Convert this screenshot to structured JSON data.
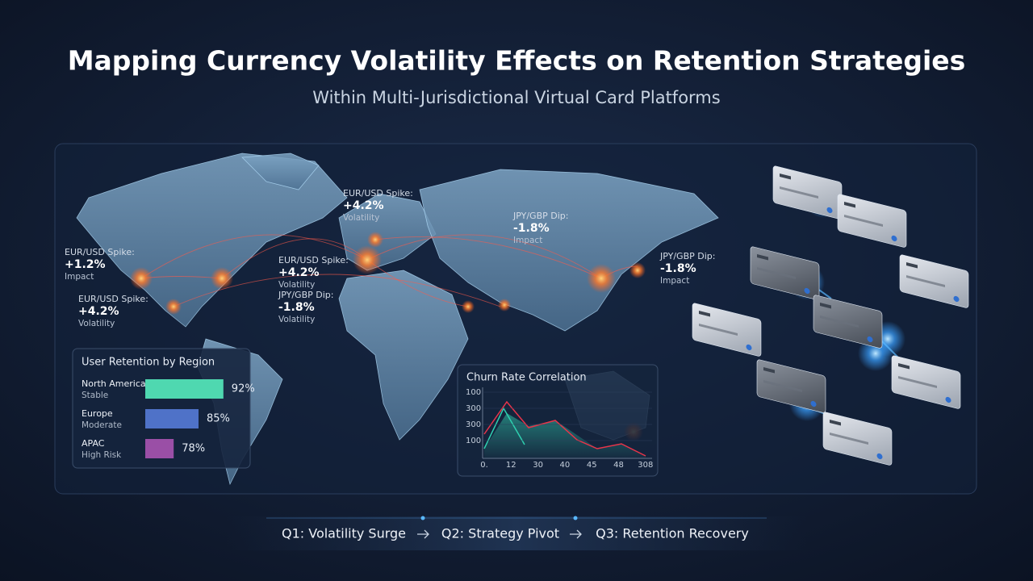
{
  "header": {
    "title": "Mapping Currency Volatility Effects on Retention Strategies",
    "subtitle": "Within Multi-Jurisdictional Virtual Card Platforms"
  },
  "map_annotations": [
    {
      "title": "EUR/USD Spike:",
      "value": "+4.2%",
      "note": "Volatility"
    },
    {
      "title": "JPY/GBP Dip:",
      "value": "-1.8%",
      "note": "Impact"
    },
    {
      "title": "EUR/USD Spike:",
      "value": "+1.2%",
      "note": "Impact"
    },
    {
      "title": "EUR/USD Spike:",
      "value": "+4.2%",
      "note": "Volatility"
    },
    {
      "title": "JPY/GBP Dip:",
      "value": "-1.8%",
      "note": "Impact"
    },
    {
      "title": "JPY/GBP Dip:",
      "value": "-1.8%",
      "note": "Volatility"
    },
    {
      "title": "EUR/USD Spike:",
      "value": "+4.2%",
      "note": "Volatility"
    }
  ],
  "chart_data": [
    {
      "type": "bar",
      "title": "User Retention by Region",
      "categories": [
        "North America",
        "Europe",
        "APAC"
      ],
      "subcategories": [
        "Stable",
        "Moderate",
        "High Risk"
      ],
      "values": [
        92,
        85,
        78
      ],
      "value_labels": [
        "92%",
        "85%",
        "78%"
      ],
      "colors": [
        "#4fd8b0",
        "#4f72c8",
        "#9a4fa6"
      ],
      "xlim": [
        70,
        95
      ]
    },
    {
      "type": "line",
      "title": "Churn Rate Correlation",
      "yticks": [
        "100",
        "300",
        "300",
        "100"
      ],
      "xticks": [
        "0.",
        "12",
        "30",
        "40",
        "45",
        "48",
        "308"
      ]
    }
  ],
  "timeline": {
    "steps": [
      "Q1: Volatility Surge",
      "Q2: Strategy Pivot",
      "Q3: Retention Recovery"
    ]
  }
}
